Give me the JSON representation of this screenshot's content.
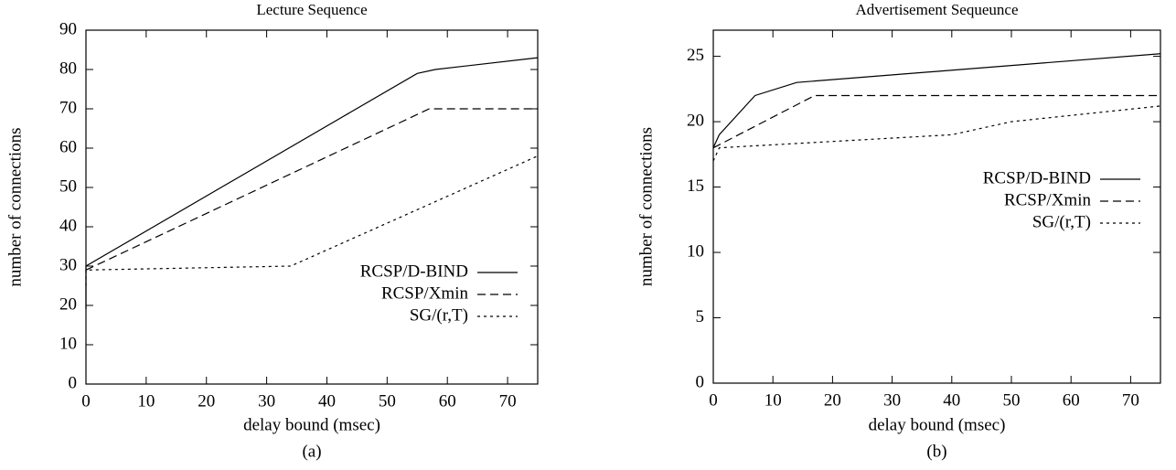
{
  "chart_data": [
    {
      "type": "line",
      "title": "Lecture Sequence",
      "caption": "(a)",
      "x_label": "delay bound (msec)",
      "y_label": "number of connections",
      "xlim": [
        0,
        75
      ],
      "xticks": [
        0,
        10,
        20,
        30,
        40,
        50,
        60,
        70
      ],
      "ylim": [
        0,
        90
      ],
      "yticks": [
        0,
        10,
        20,
        30,
        40,
        50,
        60,
        70,
        80,
        90
      ],
      "legend": "lower right",
      "series": [
        {
          "name": "RCSP/D-BIND",
          "color": "#000000",
          "style": "solid",
          "x": [
            0,
            0,
            55,
            58,
            75
          ],
          "values": [
            19,
            30,
            79,
            80,
            83
          ]
        },
        {
          "name": "RCSP/Xmin",
          "color": "#000000",
          "style": "dashed",
          "x": [
            0,
            57,
            75
          ],
          "values": [
            29,
            70,
            70
          ]
        },
        {
          "name": "SG/(r,T)",
          "color": "#000000",
          "style": "dotted",
          "x": [
            0,
            0,
            34,
            75
          ],
          "values": [
            25,
            29,
            30,
            58
          ]
        }
      ]
    },
    {
      "type": "line",
      "title": "Advertisement Sequeunce",
      "caption": "(b)",
      "x_label": "delay bound (msec)",
      "y_label": "number of connections",
      "xlim": [
        0,
        75
      ],
      "xticks": [
        0,
        10,
        20,
        30,
        40,
        50,
        60,
        70
      ],
      "ylim": [
        0,
        27
      ],
      "yticks": [
        0,
        5,
        10,
        15,
        20,
        25
      ],
      "legend": "center right",
      "series": [
        {
          "name": "RCSP/D-BIND",
          "color": "#000000",
          "style": "solid",
          "x": [
            0,
            1,
            7,
            14,
            75
          ],
          "values": [
            18,
            19,
            22,
            23,
            25.2
          ]
        },
        {
          "name": "RCSP/Xmin",
          "color": "#000000",
          "style": "dashed",
          "x": [
            0,
            17,
            75
          ],
          "values": [
            18,
            22,
            22
          ]
        },
        {
          "name": "SG/(r,T)",
          "color": "#000000",
          "style": "dotted",
          "x": [
            0,
            1,
            40,
            50,
            75
          ],
          "values": [
            17,
            18,
            19,
            20,
            21.2
          ]
        }
      ]
    }
  ]
}
